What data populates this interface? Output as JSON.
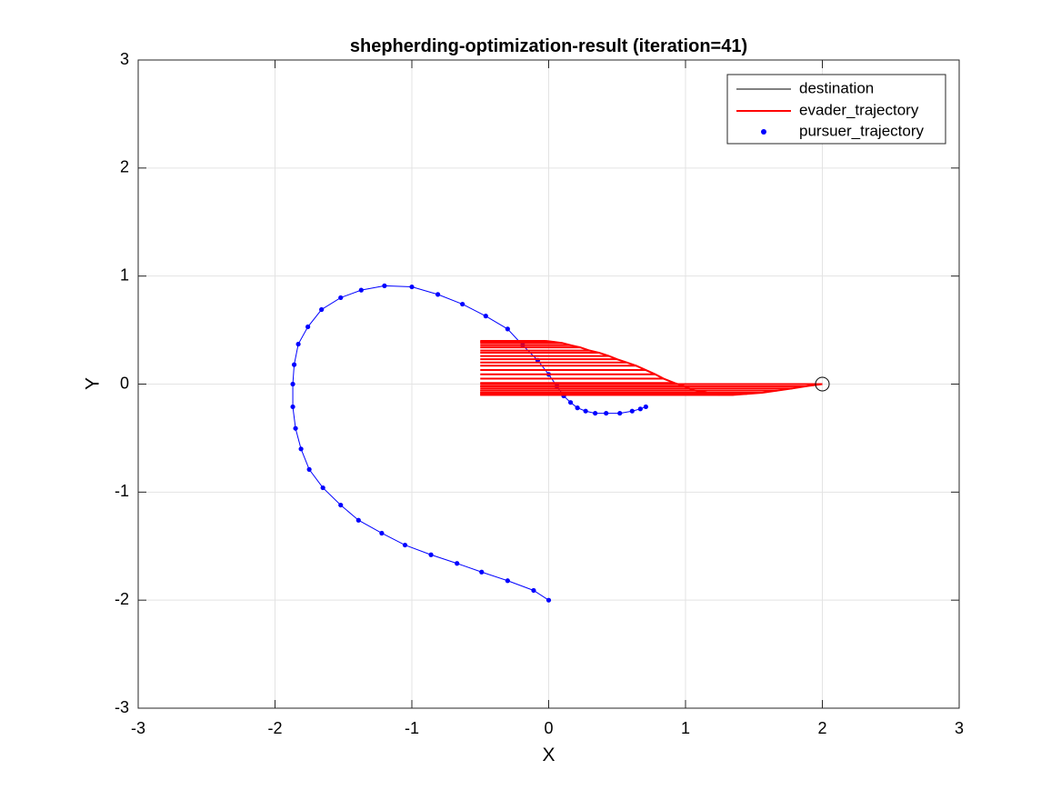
{
  "chart_data": {
    "type": "line",
    "title": "shepherding-optimization-result (iteration=41)",
    "xlabel": "X",
    "ylabel": "Y",
    "xlim": [
      -3,
      3
    ],
    "ylim": [
      -3,
      3
    ],
    "xticks": [
      "-3",
      "-2",
      "-1",
      "0",
      "1",
      "2",
      "3"
    ],
    "yticks": [
      "-3",
      "-2",
      "-1",
      "0",
      "1",
      "2",
      "3"
    ],
    "grid": true,
    "legend_position": "top-right",
    "legend": [
      "destination",
      "evader_trajectory",
      "pursuer_trajectory"
    ],
    "colors": {
      "destination": "#000000",
      "evader": "#ff0000",
      "pursuer": "#0000ff",
      "grid": "#e3e3e3"
    },
    "destination": {
      "x": 2.0,
      "y": 0.0,
      "radius": 0.05
    },
    "pursuer": {
      "x": [
        0.0,
        -0.11,
        -0.3,
        -0.49,
        -0.67,
        -0.86,
        -1.05,
        -1.22,
        -1.39,
        -1.52,
        -1.65,
        -1.75,
        -1.81,
        -1.85,
        -1.87,
        -1.87,
        -1.86,
        -1.83,
        -1.76,
        -1.66,
        -1.52,
        -1.37,
        -1.2,
        -1.0,
        -0.81,
        -0.63,
        -0.46,
        -0.3,
        -0.19,
        -0.08,
        0.0,
        0.06,
        0.11,
        0.16,
        0.21,
        0.27,
        0.34,
        0.42,
        0.52,
        0.61,
        0.67,
        0.71
      ],
      "y": [
        -2.0,
        -1.91,
        -1.82,
        -1.74,
        -1.66,
        -1.58,
        -1.49,
        -1.38,
        -1.26,
        -1.12,
        -0.96,
        -0.79,
        -0.6,
        -0.41,
        -0.21,
        0.0,
        0.18,
        0.37,
        0.53,
        0.69,
        0.8,
        0.87,
        0.91,
        0.9,
        0.83,
        0.74,
        0.63,
        0.51,
        0.36,
        0.22,
        0.09,
        -0.02,
        -0.11,
        -0.17,
        -0.22,
        -0.25,
        -0.27,
        -0.27,
        -0.27,
        -0.25,
        -0.23,
        -0.21
      ]
    },
    "evader": {
      "x": [
        2.0,
        1.88,
        1.78,
        1.67,
        1.56,
        1.45,
        1.35,
        1.25,
        1.16,
        1.07,
        0.99,
        0.92,
        0.84,
        0.78,
        0.71,
        0.64,
        0.57,
        0.5,
        0.44,
        0.37,
        0.3,
        0.23,
        0.16,
        0.1,
        0.04,
        -0.02
      ],
      "y": [
        0.0,
        -0.02,
        -0.04,
        -0.06,
        -0.08,
        -0.09,
        -0.1,
        -0.1,
        -0.08,
        -0.06,
        -0.02,
        0.01,
        0.05,
        0.09,
        0.13,
        0.17,
        0.2,
        0.23,
        0.26,
        0.29,
        0.31,
        0.34,
        0.36,
        0.38,
        0.39,
        0.4
      ]
    }
  }
}
